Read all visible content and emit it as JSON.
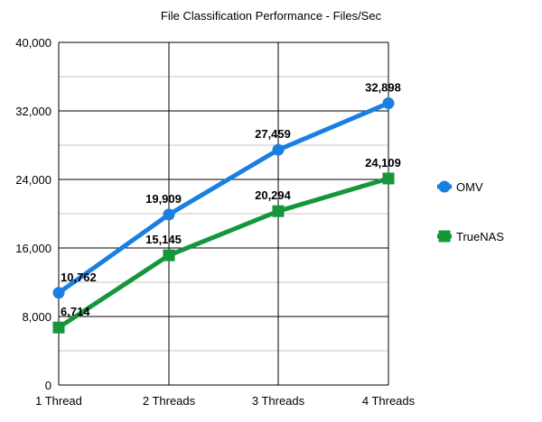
{
  "chart_data": {
    "type": "line",
    "title": "File Classification Performance - Files/Sec",
    "categories": [
      "1 Thread",
      "2 Threads",
      "3 Threads",
      "4 Threads"
    ],
    "y_ticks": [
      "0",
      "8,000",
      "16,000",
      "24,000",
      "32,000",
      "40,000"
    ],
    "ylim": [
      0,
      40000
    ],
    "y_major_step": 8000,
    "y_minor_step": 4000,
    "grid": true,
    "legend_position": "right",
    "series": [
      {
        "name": "OMV",
        "values": [
          10762,
          19909,
          27459,
          32898
        ],
        "labels": [
          "10,762",
          "19,909",
          "27,459",
          "32,898"
        ],
        "color": "#1a7fe0",
        "marker": "circle"
      },
      {
        "name": "TrueNAS",
        "values": [
          6714,
          15145,
          20294,
          24109
        ],
        "labels": [
          "6,714",
          "15,145",
          "20,294",
          "24,109"
        ],
        "color": "#16963a",
        "marker": "square"
      }
    ]
  }
}
